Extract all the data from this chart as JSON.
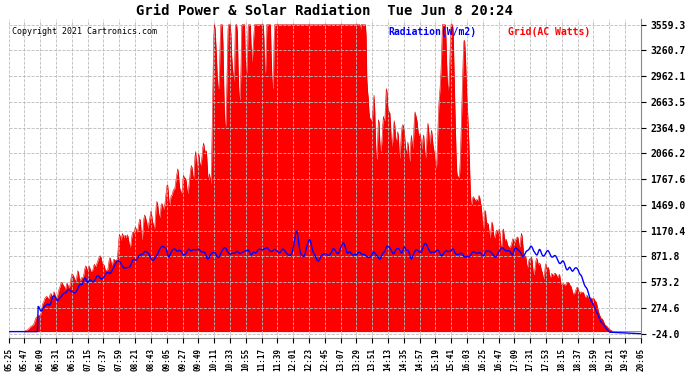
{
  "title": "Grid Power & Solar Radiation  Tue Jun 8 20:24",
  "copyright": "Copyright 2021 Cartronics.com",
  "legend_radiation": "Radiation(W/m2)",
  "legend_grid": "Grid(AC Watts)",
  "yticks": [
    3559.3,
    3260.7,
    2962.1,
    2663.5,
    2364.9,
    2066.2,
    1767.6,
    1469.0,
    1170.4,
    871.8,
    573.2,
    274.6,
    -24.0
  ],
  "ymin": -24.0,
  "ymax": 3559.3,
  "bg_color": "#ffffff",
  "plot_bg_color": "#ffffff",
  "grid_color": "#bbbbbb",
  "radiation_fill_color": "#ff0000",
  "radiation_line_color": "#dd0000",
  "grid_line_color": "#0000ff",
  "title_color": "#000000",
  "copyright_color": "#000000",
  "radiation_legend_color": "#0000ff",
  "grid_legend_color": "#ff0000",
  "xtick_labels": [
    "05:25",
    "05:47",
    "06:09",
    "06:31",
    "06:53",
    "07:15",
    "07:37",
    "07:59",
    "08:21",
    "08:43",
    "09:05",
    "09:27",
    "09:49",
    "10:11",
    "10:33",
    "10:55",
    "11:17",
    "11:39",
    "12:01",
    "12:23",
    "12:45",
    "13:07",
    "13:29",
    "13:51",
    "14:13",
    "14:35",
    "14:57",
    "15:19",
    "15:41",
    "16:03",
    "16:25",
    "16:47",
    "17:09",
    "17:31",
    "17:53",
    "18:15",
    "18:37",
    "18:59",
    "19:21",
    "19:43",
    "20:05"
  ],
  "n_points": 880
}
